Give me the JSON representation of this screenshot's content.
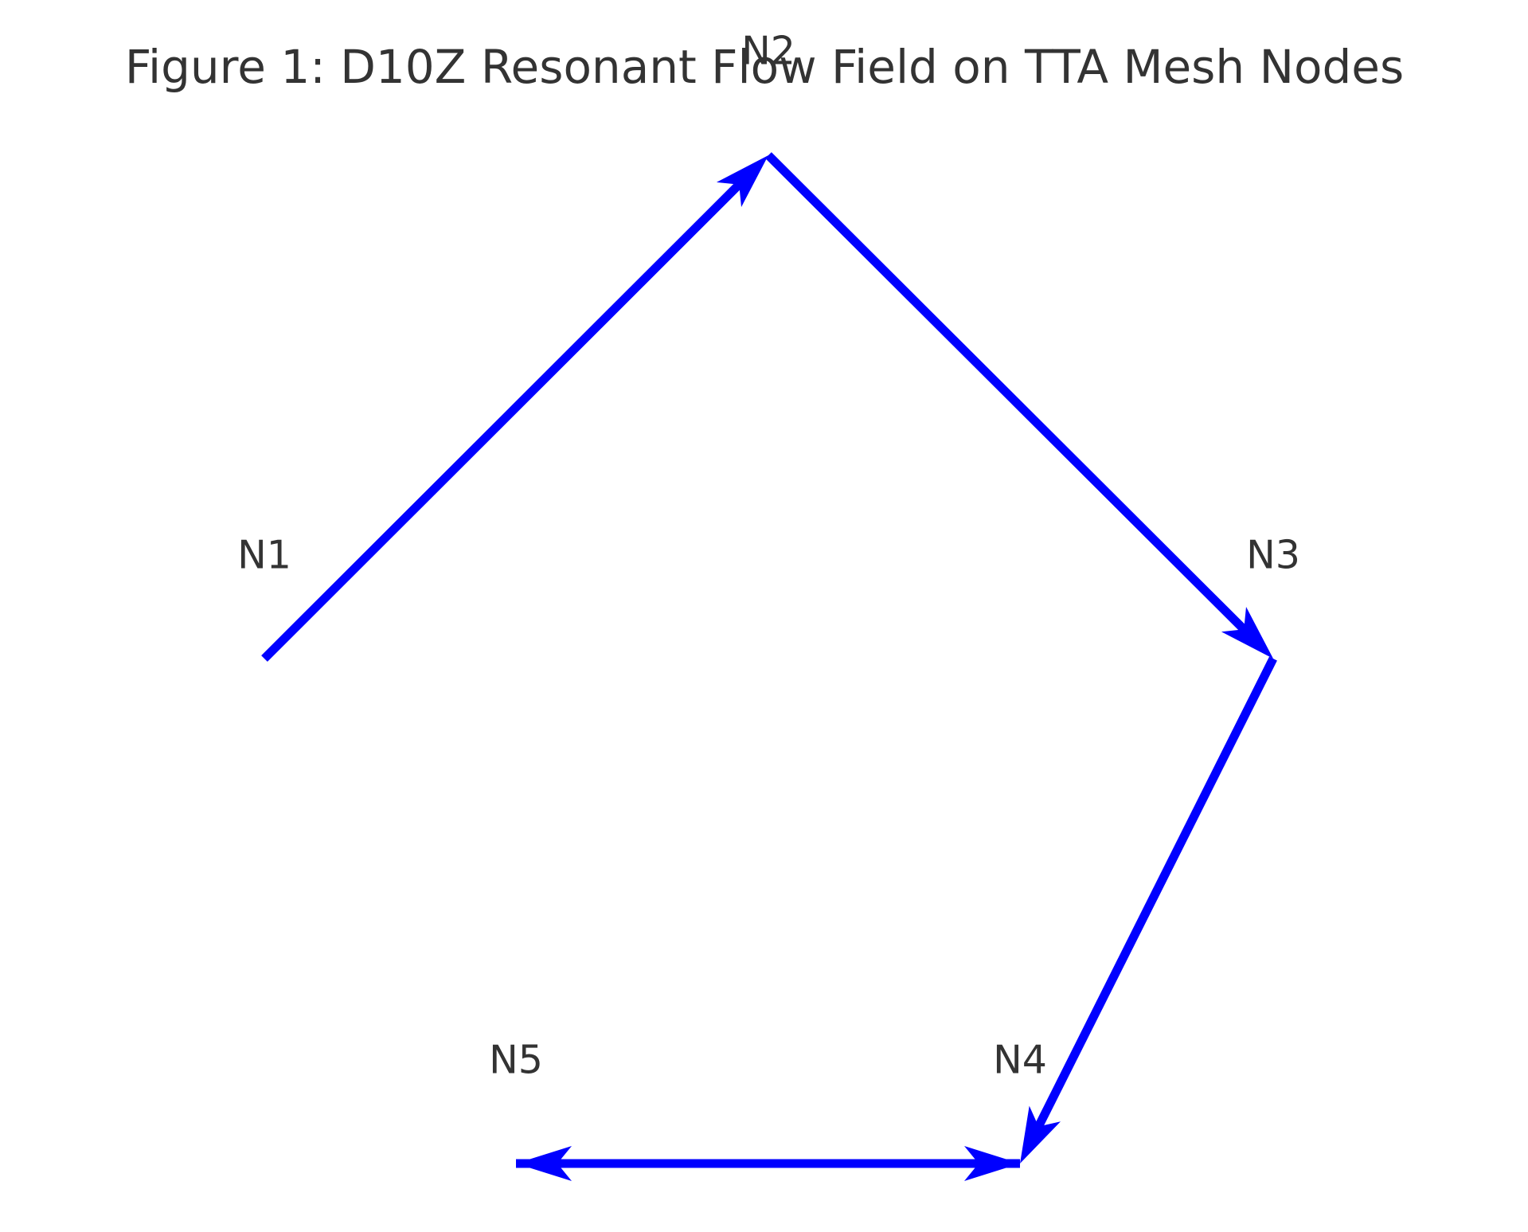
{
  "figure": {
    "title": "Figure 1: D10Z Resonant Flow Field on TTA Mesh Nodes"
  },
  "style": {
    "arrow_color": "#0000ff",
    "text_color": "#333333"
  },
  "nodes": [
    {
      "id": "N1",
      "label": "N1"
    },
    {
      "id": "N2",
      "label": "N2"
    },
    {
      "id": "N3",
      "label": "N3"
    },
    {
      "id": "N4",
      "label": "N4"
    },
    {
      "id": "N5",
      "label": "N5"
    }
  ],
  "flows": [
    {
      "from": "N1",
      "to": "N2"
    },
    {
      "from": "N2",
      "to": "N3"
    },
    {
      "from": "N3",
      "to": "N4"
    },
    {
      "from": "N4",
      "to": "N5"
    },
    {
      "from": "N5",
      "to": "N4"
    }
  ]
}
